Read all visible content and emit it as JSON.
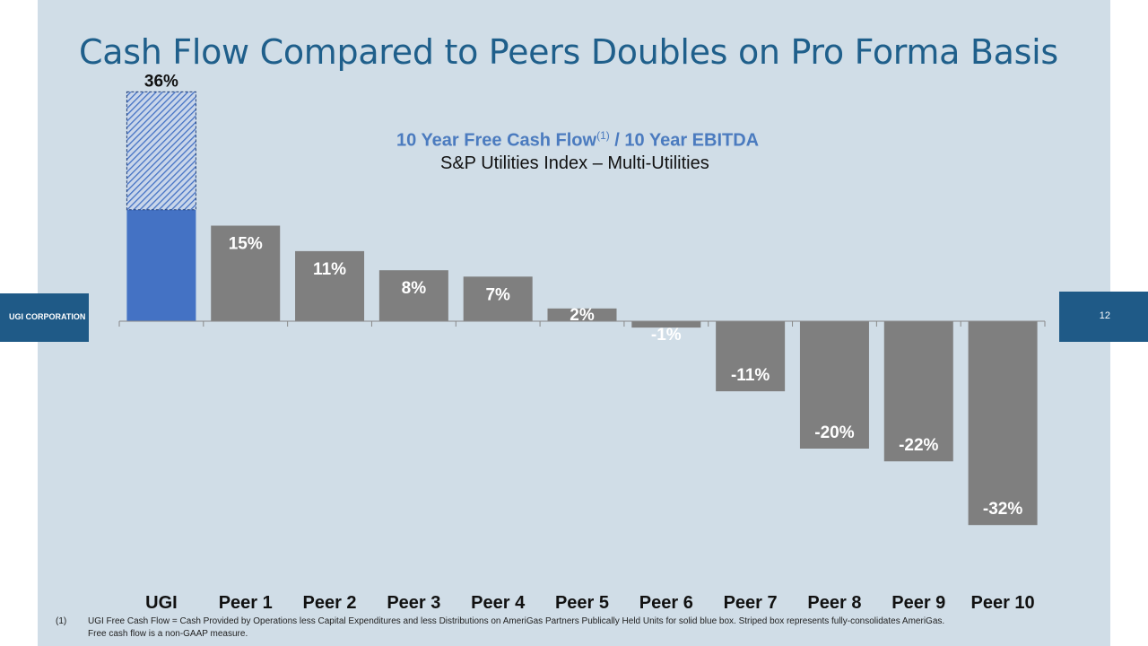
{
  "slide": {
    "title": "Cash Flow Compared to Peers Doubles on Pro Forma Basis",
    "company": "UGI CORPORATION",
    "page_number": "12"
  },
  "chart_data": {
    "type": "bar",
    "title": "10 Year Free Cash Flow",
    "title_superscript": "(1)",
    "title_suffix": " / 10 Year EBITDA",
    "subtitle": "S&P Utilities Index – Multi-Utilities",
    "categories": [
      "UGI",
      "Peer 1",
      "Peer 2",
      "Peer 3",
      "Peer 4",
      "Peer 5",
      "Peer 6",
      "Peer 7",
      "Peer 8",
      "Peer 9",
      "Peer 10"
    ],
    "values": [
      17.5,
      15,
      11,
      8,
      7,
      2,
      -1,
      -11,
      -20,
      -22,
      -32
    ],
    "labels": [
      "",
      "15%",
      "11%",
      "8%",
      "7%",
      "2%",
      "-1%",
      "-11%",
      "-20%",
      "-22%",
      "-32%"
    ],
    "pro_forma": {
      "category": "UGI",
      "value": 36,
      "label": "36%"
    },
    "ylim": [
      -32,
      36
    ],
    "colors": {
      "ugi": "#4472c4",
      "peer": "#7f7f7f",
      "striped": "#4472c4"
    },
    "grid": false
  },
  "footnote": {
    "marker": "(1)",
    "lines": [
      "UGI Free Cash Flow = Cash Provided by Operations less Capital Expenditures and less Distributions on AmeriGas Partners Publically Held Units for solid blue box.  Striped box represents fully-consolidates AmeriGas.",
      "Free cash flow is a non-GAAP measure."
    ]
  }
}
